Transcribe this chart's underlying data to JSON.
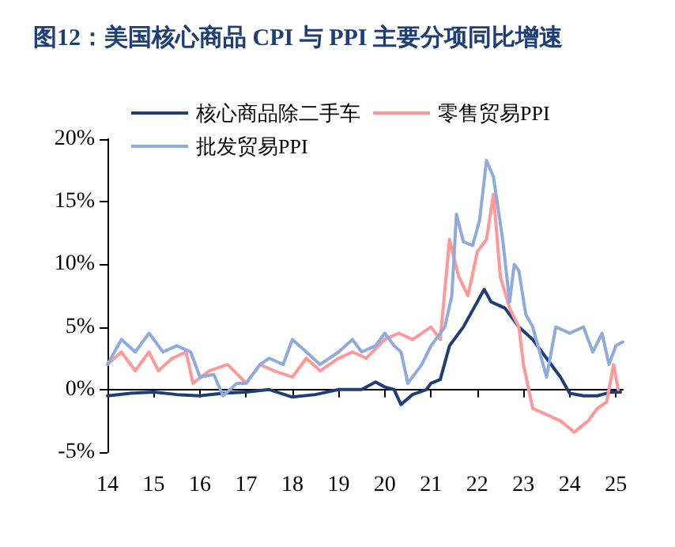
{
  "chart_data": {
    "type": "line",
    "title": "图12：美国核心商品 CPI 与 PPI 主要分项同比增速",
    "xlim": [
      2014,
      2025.15
    ],
    "xticks": [
      {
        "value": 2014,
        "label": "14"
      },
      {
        "value": 2015,
        "label": "15"
      },
      {
        "value": 2016,
        "label": "16"
      },
      {
        "value": 2017,
        "label": "17"
      },
      {
        "value": 2018,
        "label": "18"
      },
      {
        "value": 2019,
        "label": "19"
      },
      {
        "value": 2020,
        "label": "20"
      },
      {
        "value": 2021,
        "label": "21"
      },
      {
        "value": 2022,
        "label": "22"
      },
      {
        "value": 2023,
        "label": "23"
      },
      {
        "value": 2024,
        "label": "24"
      },
      {
        "value": 2025,
        "label": "25"
      }
    ],
    "ylim": [
      -5,
      20
    ],
    "yticks": [
      {
        "value": -5,
        "label": "-5%"
      },
      {
        "value": 0,
        "label": "0%"
      },
      {
        "value": 5,
        "label": "5%"
      },
      {
        "value": 10,
        "label": "10%"
      },
      {
        "value": 15,
        "label": "15%"
      },
      {
        "value": 20,
        "label": "20%"
      }
    ],
    "legend": "top",
    "marker": "none",
    "line_style": "solid",
    "series": [
      {
        "name": "核心商品除二手车",
        "color": "#1f3f74",
        "x": [
          2014,
          2014.5,
          2015,
          2015.5,
          2016,
          2016.5,
          2017,
          2017.5,
          2018,
          2018.5,
          2019,
          2019.5,
          2019.8,
          2020,
          2020.2,
          2020.35,
          2020.6,
          2020.9,
          2021,
          2021.2,
          2021.4,
          2021.7,
          2022,
          2022.15,
          2022.3,
          2022.6,
          2022.9,
          2023.2,
          2023.5,
          2023.8,
          2024,
          2024.3,
          2024.6,
          2024.9,
          2025.1
        ],
        "values": [
          -0.5,
          -0.3,
          -0.2,
          -0.4,
          -0.5,
          -0.3,
          -0.2,
          0,
          -0.6,
          -0.4,
          0,
          0,
          0.6,
          0.2,
          0,
          -1.2,
          -0.4,
          0,
          0.5,
          0.8,
          3.5,
          5,
          7,
          8,
          7,
          6.5,
          5,
          4,
          2.5,
          1,
          -0.3,
          -0.5,
          -0.5,
          -0.2,
          -0.2
        ]
      },
      {
        "name": "零售贸易PPI",
        "color": "#ff9999",
        "x": [
          2014,
          2014.3,
          2014.6,
          2014.9,
          2015.1,
          2015.4,
          2015.7,
          2015.85,
          2016.2,
          2016.6,
          2017,
          2017.3,
          2017.6,
          2018,
          2018.3,
          2018.6,
          2019,
          2019.3,
          2019.6,
          2020,
          2020.3,
          2020.6,
          2021,
          2021.2,
          2021.4,
          2021.6,
          2021.8,
          2022,
          2022.2,
          2022.35,
          2022.5,
          2022.7,
          2022.9,
          2023,
          2023.2,
          2023.5,
          2023.8,
          2024.1,
          2024.4,
          2024.6,
          2024.8,
          2024.95,
          2025.05
        ],
        "values": [
          2,
          3,
          1.5,
          3,
          1.5,
          2.5,
          3,
          0.5,
          1.5,
          2,
          0.5,
          2,
          1.5,
          1,
          2.5,
          1.5,
          2.5,
          3,
          2.5,
          4,
          4.5,
          4,
          5,
          4,
          12,
          9,
          7.5,
          11,
          12,
          15.6,
          9,
          6.5,
          5,
          2,
          -1.5,
          -2,
          -2.5,
          -3.4,
          -2.5,
          -1.5,
          -1,
          2,
          0
        ]
      },
      {
        "name": "批发贸易PPI",
        "color": "#8faadc",
        "x": [
          2014,
          2014.3,
          2014.6,
          2014.9,
          2015.2,
          2015.5,
          2015.8,
          2016,
          2016.3,
          2016.5,
          2016.8,
          2017,
          2017.3,
          2017.5,
          2017.8,
          2018,
          2018.3,
          2018.6,
          2019,
          2019.3,
          2019.5,
          2019.8,
          2020,
          2020.2,
          2020.35,
          2020.5,
          2020.8,
          2021,
          2021.3,
          2021.45,
          2021.55,
          2021.7,
          2021.9,
          2022.05,
          2022.2,
          2022.35,
          2022.55,
          2022.7,
          2022.8,
          2022.9,
          2023.05,
          2023.2,
          2023.35,
          2023.5,
          2023.7,
          2024,
          2024.3,
          2024.5,
          2024.7,
          2024.85,
          2025,
          2025.15
        ],
        "values": [
          2,
          4,
          3,
          4.5,
          3,
          3.5,
          3,
          1,
          1.2,
          -0.5,
          0.5,
          0.5,
          2,
          2.5,
          2,
          4,
          3,
          2,
          3,
          4,
          3,
          3.5,
          4.5,
          3.5,
          3,
          0.5,
          2,
          3.5,
          5,
          7.5,
          14,
          11.8,
          11.5,
          13.5,
          18.3,
          17,
          12,
          7,
          10,
          9.5,
          6,
          5,
          3,
          1,
          5,
          4.5,
          5,
          3,
          4.5,
          2,
          3.5,
          3.8
        ]
      }
    ]
  }
}
